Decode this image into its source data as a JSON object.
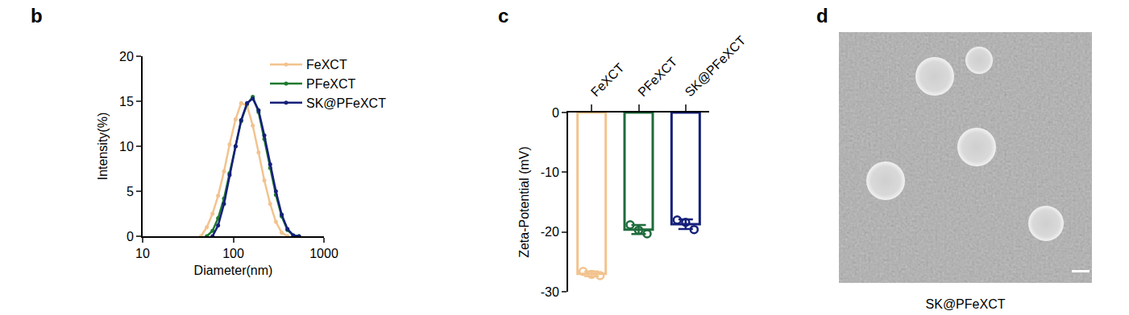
{
  "chart_data": [
    {
      "type": "line",
      "title": "b",
      "x_label": "Diameter(nm)",
      "y_label": "Intensity(%)",
      "log": "x",
      "xlim": [
        10,
        1000
      ],
      "xticks": [
        10,
        100,
        1000
      ],
      "ylim": [
        0,
        20
      ],
      "yticks": [
        0,
        5,
        10,
        15,
        20
      ],
      "grid": false,
      "legend": "top right",
      "marker": "circle",
      "series": [
        {
          "name": "FeXCT",
          "color": "#f2c38e",
          "x": [
            44,
            51,
            59,
            68,
            79,
            91,
            106,
            122,
            142,
            164,
            190,
            220,
            255,
            295,
            342,
            396
          ],
          "values": [
            0,
            1,
            2.5,
            4.5,
            7.2,
            10.2,
            13,
            14.8,
            14.5,
            12.3,
            9.3,
            6.2,
            3.6,
            1.6,
            0.4,
            0
          ]
        },
        {
          "name": "PFeXCT",
          "color": "#1f7a2e",
          "x": [
            51,
            59,
            68,
            79,
            91,
            106,
            122,
            142,
            164,
            190,
            220,
            255,
            295,
            342,
            396,
            459,
            531
          ],
          "values": [
            0,
            0.6,
            2,
            4.2,
            7,
            10,
            12.8,
            14.7,
            15.5,
            13.8,
            10.8,
            7.6,
            4.6,
            2.2,
            0.7,
            0.1,
            0
          ]
        },
        {
          "name": "SK@PFeXCT",
          "color": "#15207a",
          "x": [
            59,
            68,
            79,
            91,
            106,
            122,
            142,
            164,
            190,
            220,
            255,
            295,
            342,
            396,
            459,
            531
          ],
          "values": [
            0,
            1.2,
            3.6,
            6.8,
            10,
            12.9,
            14.8,
            15.3,
            14,
            11.2,
            8,
            5,
            2.4,
            0.8,
            0.1,
            0
          ]
        }
      ]
    },
    {
      "type": "bar",
      "title": "c",
      "y_label": "Zeta-Potential (mV)",
      "categories": [
        "FeXCT",
        "PFeXCT",
        "SK@PFeXCT"
      ],
      "values": [
        -27.0,
        -19.6,
        -18.7
      ],
      "errors": [
        0.4,
        0.75,
        0.8
      ],
      "points": [
        [
          -26.6,
          -27.1,
          -27.3
        ],
        [
          -18.8,
          -19.7,
          -20.3
        ],
        [
          -18.0,
          -18.4,
          -19.6
        ]
      ],
      "colors": [
        "#f2c38e",
        "#1f6b3c",
        "#15207a"
      ],
      "ylim": [
        -30,
        0
      ],
      "yticks": [
        0,
        -10,
        -20,
        -30
      ],
      "grid": false
    }
  ],
  "image_panel": {
    "label": "d",
    "caption": "SK@PFeXCT"
  }
}
